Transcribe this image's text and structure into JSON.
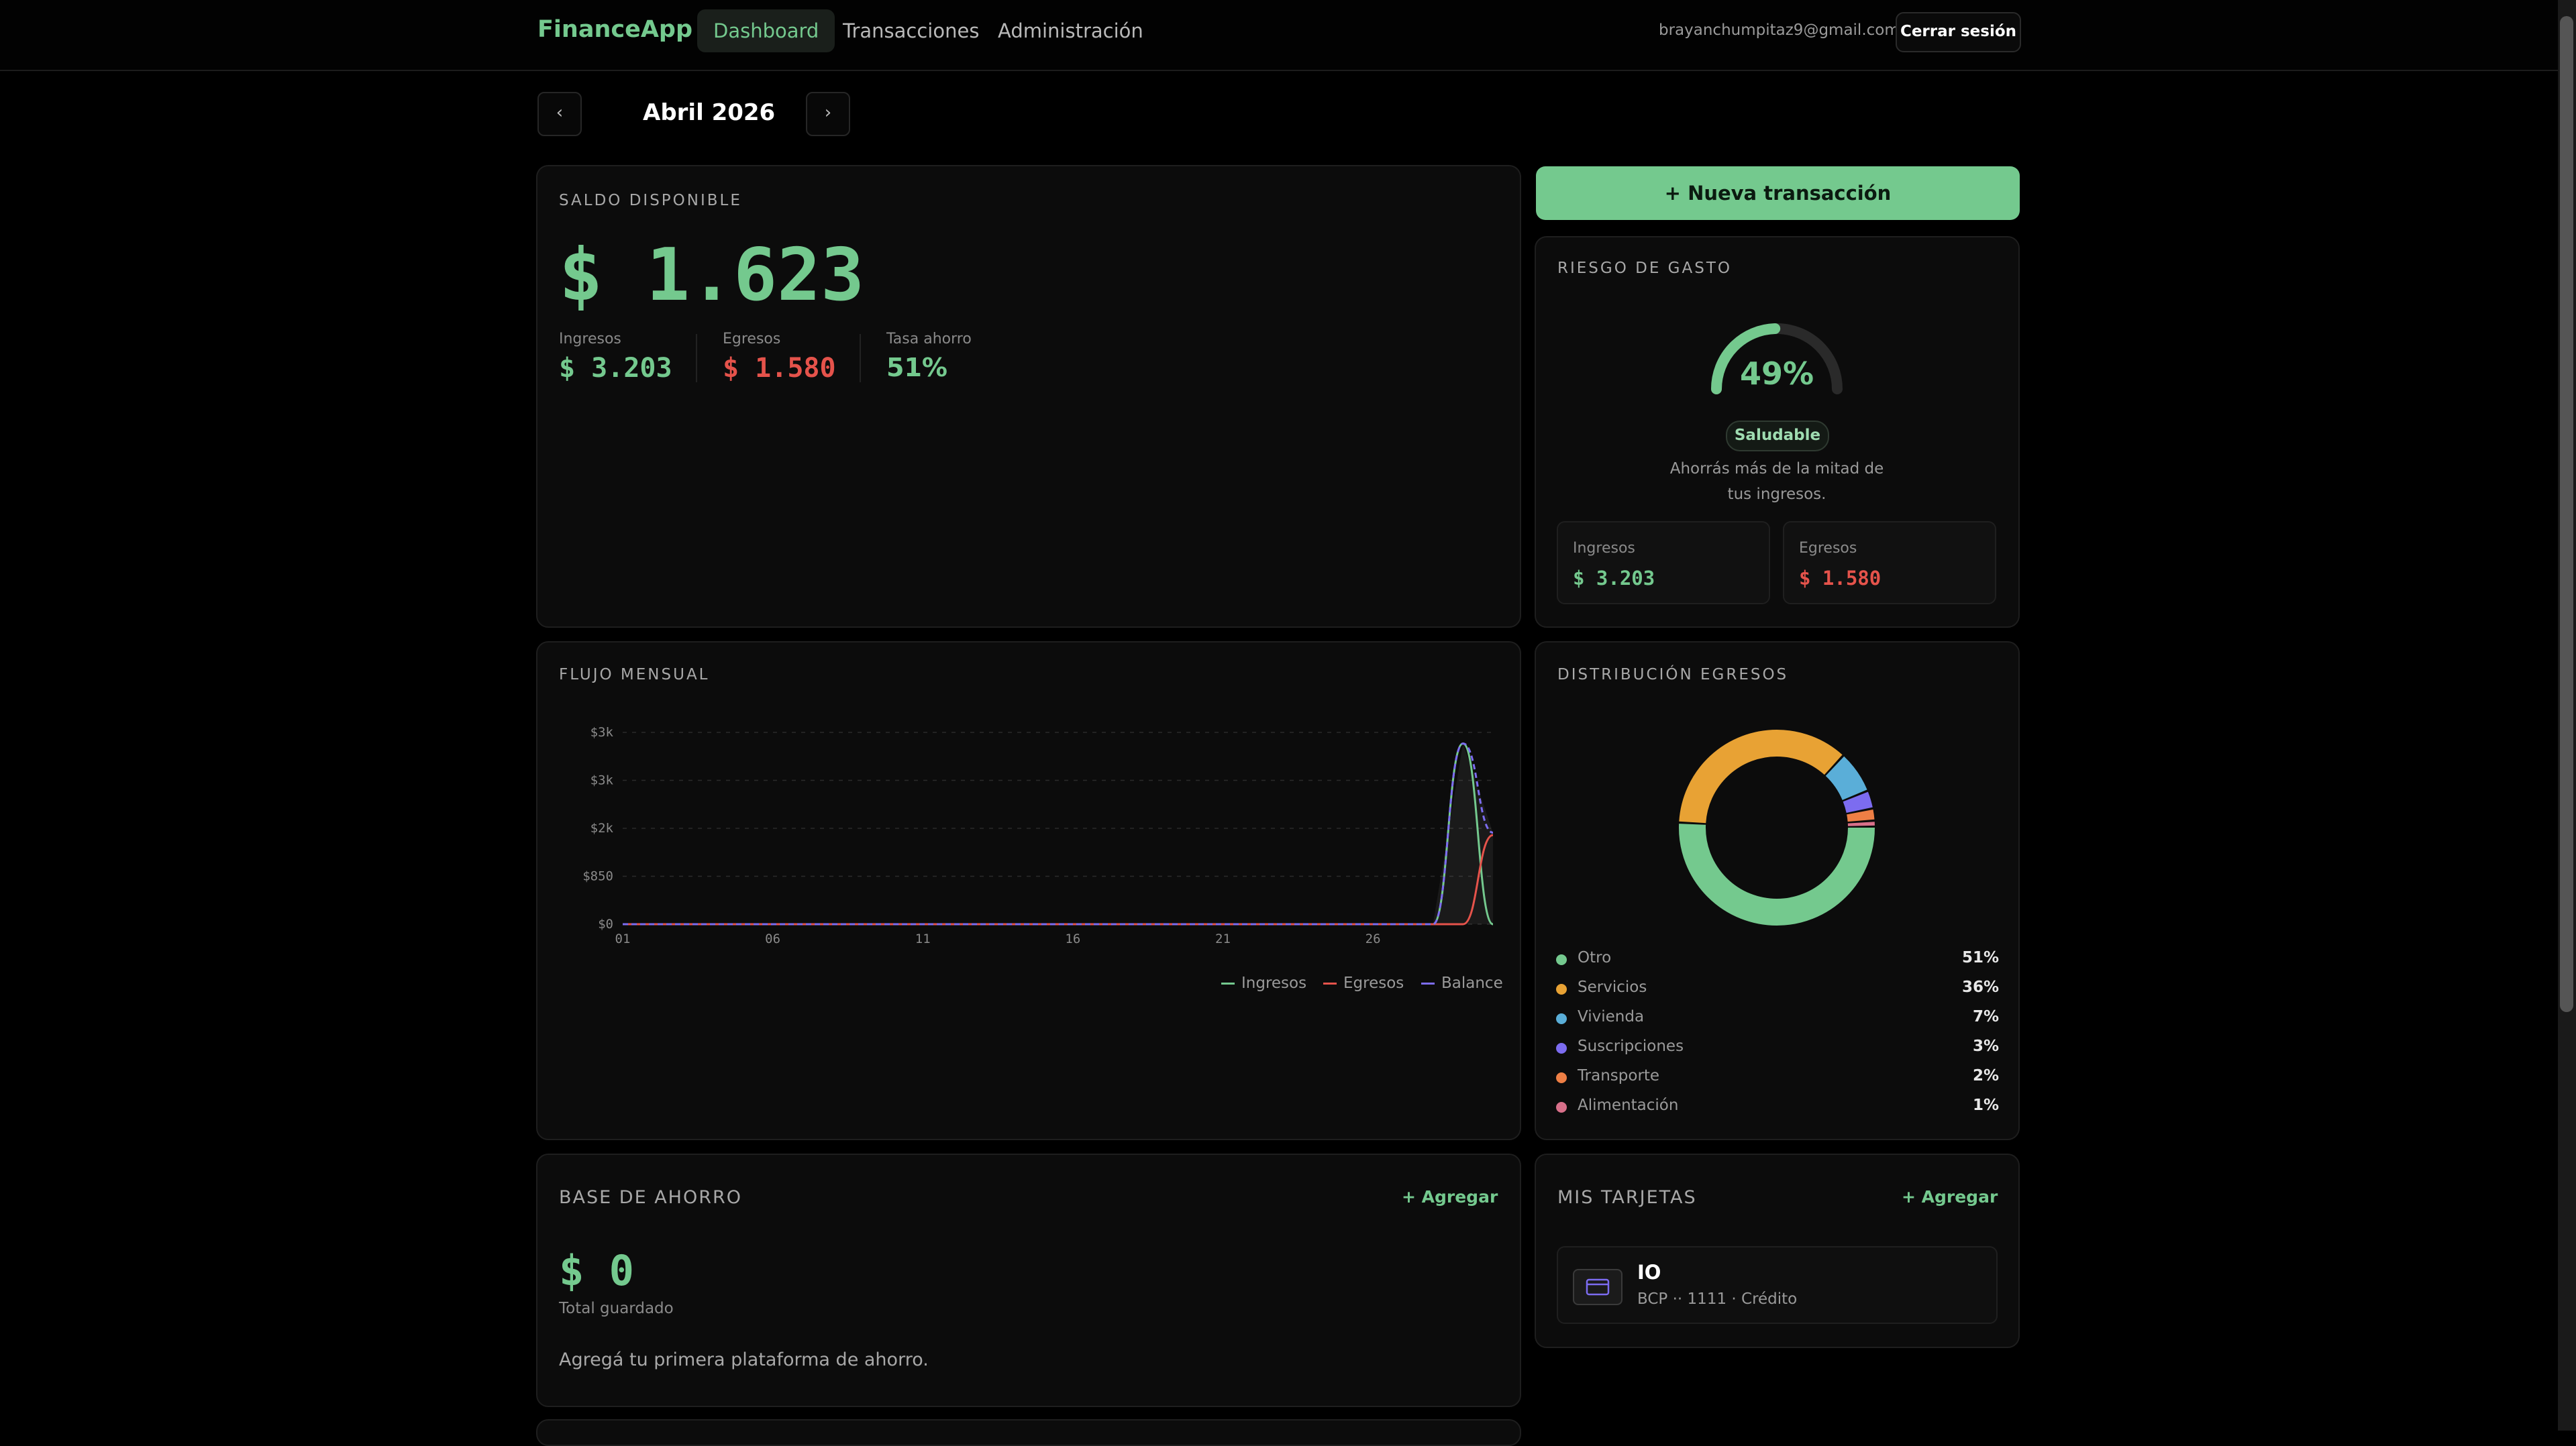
{
  "header": {
    "brand": "FinanceApp",
    "nav": [
      {
        "label": "Dashboard",
        "active": true
      },
      {
        "label": "Transacciones",
        "active": false
      },
      {
        "label": "Administración",
        "active": false
      }
    ],
    "user_email": "brayanchumpitaz9@gmail.com",
    "logout_label": "Cerrar sesión"
  },
  "month_nav": {
    "prev": "‹",
    "label": "Abril 2026",
    "next": "›"
  },
  "balance": {
    "title": "SALDO DISPONIBLE",
    "amount": "$ 1.623",
    "ingresos_label": "Ingresos",
    "ingresos": "$ 3.203",
    "egresos_label": "Egresos",
    "egresos": "$ 1.580",
    "tasa_label": "Tasa ahorro",
    "tasa": "51%"
  },
  "new_transaction_label": "+ Nueva transacción",
  "risk": {
    "title": "RIESGO DE GASTO",
    "percent": "49%",
    "level": 0.49,
    "badge": "Saludable",
    "message_line1": "Ahorrás más de la mitad de",
    "message_line2": "tus ingresos.",
    "ingresos_label": "Ingresos",
    "ingresos": "$ 3.203",
    "egresos_label": "Egresos",
    "egresos": "$ 1.580"
  },
  "flow": {
    "title": "FLUJO MENSUAL",
    "legend": [
      "Ingresos",
      "Egresos",
      "Balance"
    ]
  },
  "chart_data": {
    "type": "line",
    "title": "FLUJO MENSUAL",
    "x_ticks": [
      "01",
      "06",
      "11",
      "16",
      "21",
      "26"
    ],
    "y_ticks": [
      "$0",
      "$850",
      "$2k",
      "$3k",
      "$3k"
    ],
    "ylim": [
      0,
      3400
    ],
    "series": [
      {
        "name": "Ingresos",
        "color": "#74c98e",
        "x": [
          1,
          28,
          29,
          30
        ],
        "values": [
          0,
          0,
          3203,
          0
        ]
      },
      {
        "name": "Egresos",
        "color": "#e5534b",
        "x": [
          1,
          28,
          29,
          30
        ],
        "values": [
          0,
          0,
          0,
          1580
        ]
      },
      {
        "name": "Balance",
        "color": "#7c6cf0",
        "x": [
          1,
          28,
          29,
          30
        ],
        "values": [
          0,
          0,
          3203,
          1623
        ]
      }
    ],
    "grid": true,
    "legend_position": "bottom-right"
  },
  "distribution": {
    "title": "DISTRIBUCIÓN EGRESOS",
    "items": [
      {
        "name": "Otro",
        "pct": "51%",
        "value": 51,
        "color": "#74c98e"
      },
      {
        "name": "Servicios",
        "pct": "36%",
        "value": 36,
        "color": "#e8a234"
      },
      {
        "name": "Vivienda",
        "pct": "7%",
        "value": 7,
        "color": "#5aaed8"
      },
      {
        "name": "Suscripciones",
        "pct": "3%",
        "value": 3,
        "color": "#7c6cf0"
      },
      {
        "name": "Transporte",
        "pct": "2%",
        "value": 2,
        "color": "#ee7f45"
      },
      {
        "name": "Alimentación",
        "pct": "1%",
        "value": 1,
        "color": "#d8708a"
      }
    ]
  },
  "savings": {
    "title": "BASE DE AHORRO",
    "add_label": "+ Agregar",
    "amount": "$ 0",
    "total_label": "Total guardado",
    "empty_message": "Agregá tu primera plataforma de ahorro."
  },
  "cards": {
    "title": "MIS TARJETAS",
    "add_label": "+ Agregar",
    "items": [
      {
        "name": "IO",
        "detail": "BCP ·· 1111 · Crédito"
      }
    ]
  }
}
